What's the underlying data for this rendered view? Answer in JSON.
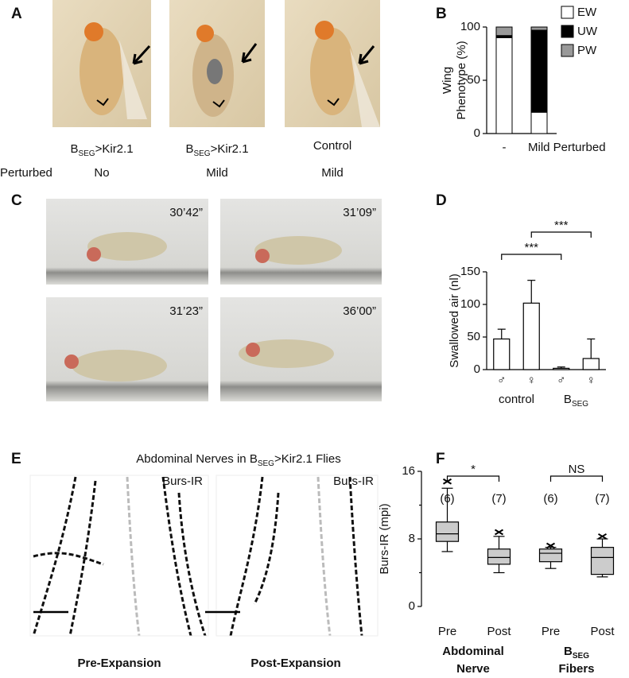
{
  "panel_labels": [
    "A",
    "B",
    "C",
    "D",
    "E",
    "F"
  ],
  "panel_a": {
    "genotypes": [
      {
        "base": "B",
        "sub": "SEG",
        "rest": ">Kir2.1"
      },
      {
        "base": "B",
        "sub": "SEG",
        "rest": ">Kir2.1"
      },
      {
        "base": "Control"
      }
    ],
    "row_label": "Perturbed",
    "perturbed": [
      "No",
      "Mild",
      "Mild"
    ]
  },
  "panel_c": {
    "timestamps": [
      "30’42”",
      "31’09”",
      "31’23”",
      "36’00”"
    ]
  },
  "panel_e": {
    "title": {
      "before": "Abdominal Nerves in B",
      "sub": "SEG",
      "after": ">Kir2.1 Flies"
    },
    "image_labels": [
      "Burs-IR",
      "Burs-IR"
    ],
    "captions": [
      "Pre-Expansion",
      "Post-Expansion"
    ]
  },
  "chart_data": [
    {
      "type": "stacked_bar",
      "y_label": [
        "Wing",
        "Phenotype (%)"
      ],
      "categories": [
        "-",
        "Mild Perturbed"
      ],
      "series": [
        {
          "name": "EW",
          "color": "#ffffff",
          "values": [
            90,
            20
          ]
        },
        {
          "name": "UW",
          "color": "#000000",
          "values": [
            2,
            77
          ]
        },
        {
          "name": "PW",
          "color": "#999999",
          "values": [
            8,
            3
          ]
        }
      ],
      "ylim": [
        0,
        100
      ],
      "yticks": [
        0,
        50,
        100
      ]
    },
    {
      "type": "bar",
      "y_label": "Swallowed air (nl)",
      "categories": [
        "♂",
        "♀",
        "♂",
        "♀"
      ],
      "groups": [
        {
          "text": "control"
        },
        {
          "text": "B",
          "sub": "SEG"
        }
      ],
      "values": [
        47,
        102,
        2,
        17
      ],
      "errors": [
        15,
        35,
        2,
        30
      ],
      "color": "#ffffff",
      "ylim": [
        0,
        150
      ],
      "yticks": [
        0,
        50,
        100,
        150
      ],
      "significance": [
        {
          "text": "***",
          "from": 1,
          "to": 3
        },
        {
          "text": "***",
          "from": 0,
          "to": 2
        }
      ]
    },
    {
      "type": "box",
      "y_label": "Burs-IR (mpi)",
      "categories": [
        "Pre",
        "Post",
        "Pre",
        "Post"
      ],
      "groups": [
        {
          "text": "Abdominal",
          "line2": "Nerve"
        },
        {
          "text": "B",
          "sub": "SEG",
          "line2": "Fibers"
        }
      ],
      "counts": [
        "(6)",
        "(7)",
        "(6)",
        "(7)"
      ],
      "boxes": [
        {
          "low": 6.5,
          "q1": 7.7,
          "median": 8.6,
          "q3": 10,
          "high": 14,
          "max": 14.8
        },
        {
          "low": 4,
          "q1": 5,
          "median": 5.8,
          "q3": 6.8,
          "high": 8.3,
          "max": 8.8
        },
        {
          "low": 4.5,
          "q1": 5.3,
          "median": 6.3,
          "q3": 6.8,
          "high": 7,
          "max": 7.2
        },
        {
          "low": 3.5,
          "q1": 3.8,
          "median": 5.8,
          "q3": 7,
          "high": 8,
          "max": 8.3
        }
      ],
      "color": "#cccccc",
      "ylim": [
        0,
        16
      ],
      "yticks": [
        0,
        8,
        16
      ],
      "minor_yticks": [
        4,
        12
      ],
      "significance": [
        {
          "text": "*",
          "from": 0,
          "to": 1
        },
        {
          "text": "NS",
          "from": 2,
          "to": 3
        }
      ]
    }
  ]
}
